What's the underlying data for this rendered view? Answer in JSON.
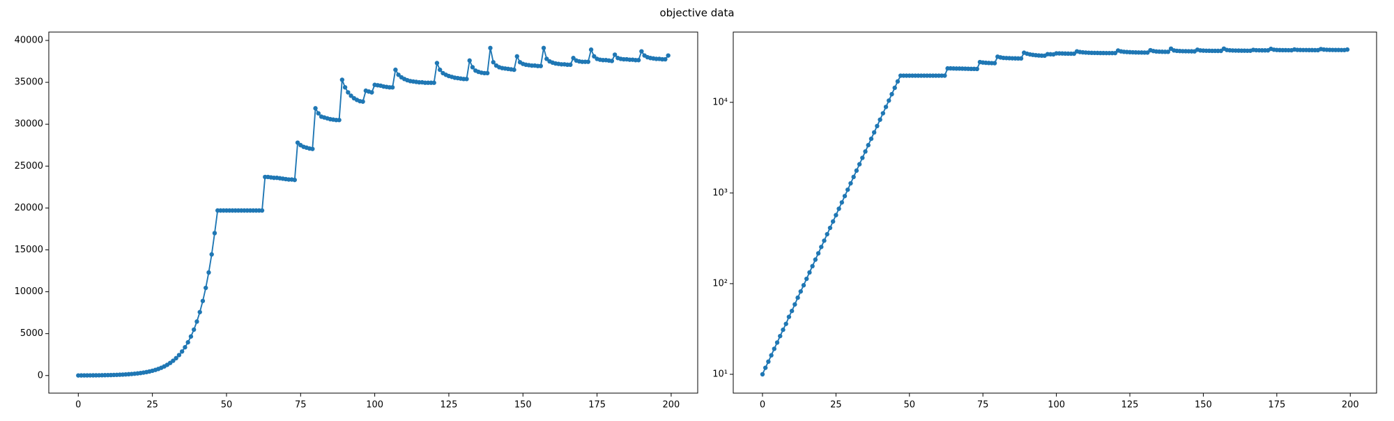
{
  "title": "objective data",
  "chart_data": [
    {
      "type": "line",
      "color": "#1f77b4",
      "log_y": false,
      "x": [
        0,
        1,
        2,
        3,
        4,
        5,
        6,
        7,
        8,
        9,
        10,
        11,
        12,
        13,
        14,
        15,
        16,
        17,
        18,
        19,
        20,
        21,
        22,
        23,
        24,
        25,
        26,
        27,
        28,
        29,
        30,
        31,
        32,
        33,
        34,
        35,
        36,
        37,
        38,
        39,
        40,
        41,
        42,
        43,
        44,
        45,
        46,
        47,
        48,
        49,
        50,
        51,
        52,
        53,
        54,
        55,
        56,
        57,
        58,
        59,
        60,
        61,
        62,
        63,
        64,
        65,
        66,
        67,
        68,
        69,
        70,
        71,
        72,
        73,
        74,
        75,
        76,
        77,
        78,
        79,
        80,
        81,
        82,
        83,
        84,
        85,
        86,
        87,
        88,
        89,
        90,
        91,
        92,
        93,
        94,
        95,
        96,
        97,
        98,
        99,
        100,
        101,
        102,
        103,
        104,
        105,
        106,
        107,
        108,
        109,
        110,
        111,
        112,
        113,
        114,
        115,
        116,
        117,
        118,
        119,
        120,
        121,
        122,
        123,
        124,
        125,
        126,
        127,
        128,
        129,
        130,
        131,
        132,
        133,
        134,
        135,
        136,
        137,
        138,
        139,
        140,
        141,
        142,
        143,
        144,
        145,
        146,
        147,
        148,
        149,
        150,
        151,
        152,
        153,
        154,
        155,
        156,
        157,
        158,
        159,
        160,
        161,
        162,
        163,
        164,
        165,
        166,
        167,
        168,
        169,
        170,
        171,
        172,
        173,
        174,
        175,
        176,
        177,
        178,
        179,
        180,
        181,
        182,
        183,
        184,
        185,
        186,
        187,
        188,
        189,
        190,
        191,
        192,
        193,
        194,
        195,
        196,
        197,
        198,
        199
      ],
      "values": [
        10,
        11.8,
        13.8,
        16.2,
        19.1,
        22.4,
        26.4,
        31,
        36,
        43,
        50,
        59,
        70,
        82,
        96,
        113,
        133,
        156,
        184,
        216,
        254,
        298,
        351,
        412,
        485,
        570,
        670,
        787,
        925,
        1087,
        1278,
        1503,
        1766,
        2076,
        2441,
        2869,
        3373,
        3965,
        4661,
        5479,
        6440,
        7571,
        8900,
        10460,
        12300,
        14460,
        17000,
        19700,
        19700,
        19700,
        19700,
        19700,
        19700,
        19700,
        19700,
        19700,
        19700,
        19700,
        19700,
        19700,
        19700,
        19700,
        19700,
        23700,
        23700,
        23650,
        23600,
        23600,
        23550,
        23500,
        23450,
        23400,
        23400,
        23350,
        27800,
        27500,
        27300,
        27200,
        27100,
        27050,
        31900,
        31300,
        30900,
        30800,
        30700,
        30600,
        30550,
        30500,
        30500,
        35300,
        34400,
        33800,
        33400,
        33100,
        32900,
        32750,
        32700,
        34000,
        33900,
        33800,
        34700,
        34650,
        34600,
        34500,
        34450,
        34400,
        34400,
        36500,
        35900,
        35600,
        35400,
        35250,
        35150,
        35100,
        35050,
        35000,
        35000,
        34950,
        34950,
        34950,
        34950,
        37300,
        36500,
        36100,
        35900,
        35750,
        35650,
        35550,
        35500,
        35450,
        35400,
        35400,
        37600,
        36800,
        36400,
        36250,
        36150,
        36100,
        36100,
        39100,
        37400,
        37000,
        36800,
        36700,
        36650,
        36600,
        36550,
        36500,
        38100,
        37400,
        37200,
        37100,
        37050,
        37000,
        37000,
        36950,
        36950,
        39100,
        37800,
        37500,
        37350,
        37250,
        37200,
        37150,
        37150,
        37100,
        37100,
        37900,
        37600,
        37500,
        37450,
        37450,
        37450,
        38900,
        38100,
        37800,
        37700,
        37650,
        37650,
        37600,
        37550,
        38300,
        37900,
        37800,
        37750,
        37750,
        37700,
        37700,
        37650,
        37650,
        38700,
        38200,
        38000,
        37900,
        37850,
        37800,
        37800,
        37750,
        37750,
        38200
      ],
      "xlim": [
        -9.95,
        208.95
      ],
      "xticks": [
        0,
        25,
        50,
        75,
        100,
        125,
        150,
        175,
        200
      ],
      "ylim": [
        -2100,
        41000
      ],
      "yticks": [
        0,
        5000,
        10000,
        15000,
        20000,
        25000,
        30000,
        35000,
        40000
      ]
    },
    {
      "type": "line",
      "color": "#1f77b4",
      "log_y": true,
      "x": [
        0,
        1,
        2,
        3,
        4,
        5,
        6,
        7,
        8,
        9,
        10,
        11,
        12,
        13,
        14,
        15,
        16,
        17,
        18,
        19,
        20,
        21,
        22,
        23,
        24,
        25,
        26,
        27,
        28,
        29,
        30,
        31,
        32,
        33,
        34,
        35,
        36,
        37,
        38,
        39,
        40,
        41,
        42,
        43,
        44,
        45,
        46,
        47,
        48,
        49,
        50,
        51,
        52,
        53,
        54,
        55,
        56,
        57,
        58,
        59,
        60,
        61,
        62,
        63,
        64,
        65,
        66,
        67,
        68,
        69,
        70,
        71,
        72,
        73,
        74,
        75,
        76,
        77,
        78,
        79,
        80,
        81,
        82,
        83,
        84,
        85,
        86,
        87,
        88,
        89,
        90,
        91,
        92,
        93,
        94,
        95,
        96,
        97,
        98,
        99,
        100,
        101,
        102,
        103,
        104,
        105,
        106,
        107,
        108,
        109,
        110,
        111,
        112,
        113,
        114,
        115,
        116,
        117,
        118,
        119,
        120,
        121,
        122,
        123,
        124,
        125,
        126,
        127,
        128,
        129,
        130,
        131,
        132,
        133,
        134,
        135,
        136,
        137,
        138,
        139,
        140,
        141,
        142,
        143,
        144,
        145,
        146,
        147,
        148,
        149,
        150,
        151,
        152,
        153,
        154,
        155,
        156,
        157,
        158,
        159,
        160,
        161,
        162,
        163,
        164,
        165,
        166,
        167,
        168,
        169,
        170,
        171,
        172,
        173,
        174,
        175,
        176,
        177,
        178,
        179,
        180,
        181,
        182,
        183,
        184,
        185,
        186,
        187,
        188,
        189,
        190,
        191,
        192,
        193,
        194,
        195,
        196,
        197,
        198,
        199
      ],
      "values": [
        10,
        11.8,
        13.8,
        16.2,
        19.1,
        22.4,
        26.4,
        31,
        36,
        43,
        50,
        59,
        70,
        82,
        96,
        113,
        133,
        156,
        184,
        216,
        254,
        298,
        351,
        412,
        485,
        570,
        670,
        787,
        925,
        1087,
        1278,
        1503,
        1766,
        2076,
        2441,
        2869,
        3373,
        3965,
        4661,
        5479,
        6440,
        7571,
        8900,
        10460,
        12300,
        14460,
        17000,
        19700,
        19700,
        19700,
        19700,
        19700,
        19700,
        19700,
        19700,
        19700,
        19700,
        19700,
        19700,
        19700,
        19700,
        19700,
        19700,
        23700,
        23700,
        23650,
        23600,
        23600,
        23550,
        23500,
        23450,
        23400,
        23400,
        23350,
        27800,
        27500,
        27300,
        27200,
        27100,
        27050,
        31900,
        31300,
        30900,
        30800,
        30700,
        30600,
        30550,
        30500,
        30500,
        35300,
        34400,
        33800,
        33400,
        33100,
        32900,
        32750,
        32700,
        34000,
        33900,
        33800,
        34700,
        34650,
        34600,
        34500,
        34450,
        34400,
        34400,
        36500,
        35900,
        35600,
        35400,
        35250,
        35150,
        35100,
        35050,
        35000,
        35000,
        34950,
        34950,
        34950,
        34950,
        37300,
        36500,
        36100,
        35900,
        35750,
        35650,
        35550,
        35500,
        35450,
        35400,
        35400,
        37600,
        36800,
        36400,
        36250,
        36150,
        36100,
        36100,
        39100,
        37400,
        37000,
        36800,
        36700,
        36650,
        36600,
        36550,
        36500,
        38100,
        37400,
        37200,
        37100,
        37050,
        37000,
        37000,
        36950,
        36950,
        39100,
        37800,
        37500,
        37350,
        37250,
        37200,
        37150,
        37150,
        37100,
        37100,
        37900,
        37600,
        37500,
        37450,
        37450,
        37450,
        38900,
        38100,
        37800,
        37700,
        37650,
        37650,
        37600,
        37550,
        38300,
        37900,
        37800,
        37750,
        37750,
        37700,
        37700,
        37650,
        37650,
        38700,
        38200,
        38000,
        37900,
        37850,
        37800,
        37800,
        37750,
        37750,
        38200
      ],
      "xlim": [
        -9.95,
        208.95
      ],
      "xticks": [
        0,
        25,
        50,
        75,
        100,
        125,
        150,
        175,
        200
      ],
      "ylim": [
        6.2,
        59600
      ],
      "yticks": [
        {
          "value": 10,
          "label": "10¹"
        },
        {
          "value": 100,
          "label": "10²"
        },
        {
          "value": 1000,
          "label": "10³"
        },
        {
          "value": 10000,
          "label": "10⁴"
        }
      ]
    }
  ]
}
